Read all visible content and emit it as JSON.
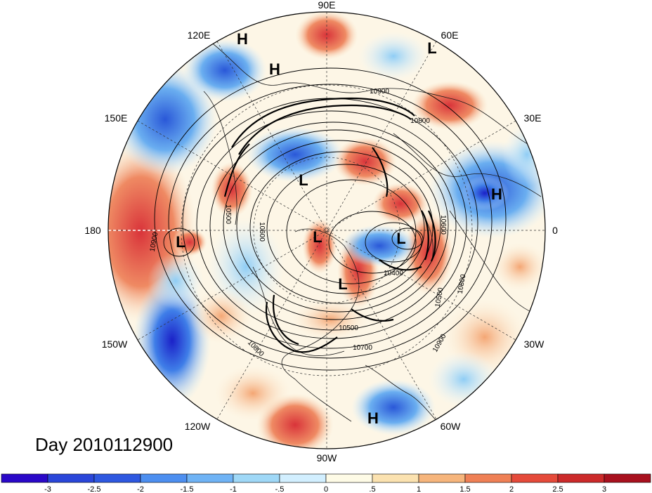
{
  "map": {
    "projection": "north-polar-stereographic",
    "center_lon_label_top": "90E",
    "longitude_labels": [
      "90E",
      "60E",
      "30E",
      "0",
      "30W",
      "60W",
      "90W",
      "120W",
      "150W",
      "180",
      "150E",
      "120E"
    ],
    "pressure_systems": [
      {
        "type": "H",
        "region": "north-asia-coast"
      },
      {
        "type": "H",
        "region": "siberia"
      },
      {
        "type": "L",
        "region": "ural"
      },
      {
        "type": "L",
        "region": "central-arctic-asia"
      },
      {
        "type": "H",
        "region": "europe"
      },
      {
        "type": "L",
        "region": "north-pacific"
      },
      {
        "type": "L",
        "region": "north-pole"
      },
      {
        "type": "L",
        "region": "greenland-sea"
      },
      {
        "type": "L",
        "region": "hudson-bay"
      },
      {
        "type": "H",
        "region": "caribbean"
      }
    ],
    "contour_labels": [
      "10900",
      "10800",
      "10600",
      "10500",
      "10900",
      "10400",
      "10500",
      "10800",
      "10900",
      "10600",
      "10700",
      "10800",
      "10500"
    ],
    "colors": {
      "land_line": "#1a1a1a",
      "contour": "#000000",
      "background": "#ffffff"
    }
  },
  "title": "Day 2010112900",
  "colorbar": {
    "labels": [
      "-3",
      "-2.5",
      "-2",
      "-1.5",
      "-1",
      "-.5",
      "0",
      ".5",
      "1",
      "1.5",
      "2",
      "2.5",
      "3"
    ],
    "colors": [
      "#1a0fc7",
      "#2e58e0",
      "#4d8ff0",
      "#6fb3f5",
      "#9fd8f7",
      "#d2efff",
      "#fefbe6",
      "#fbe2b0",
      "#f6b57c",
      "#ef8055",
      "#e54a3a",
      "#cc2a2a",
      "#a8101e"
    ]
  }
}
